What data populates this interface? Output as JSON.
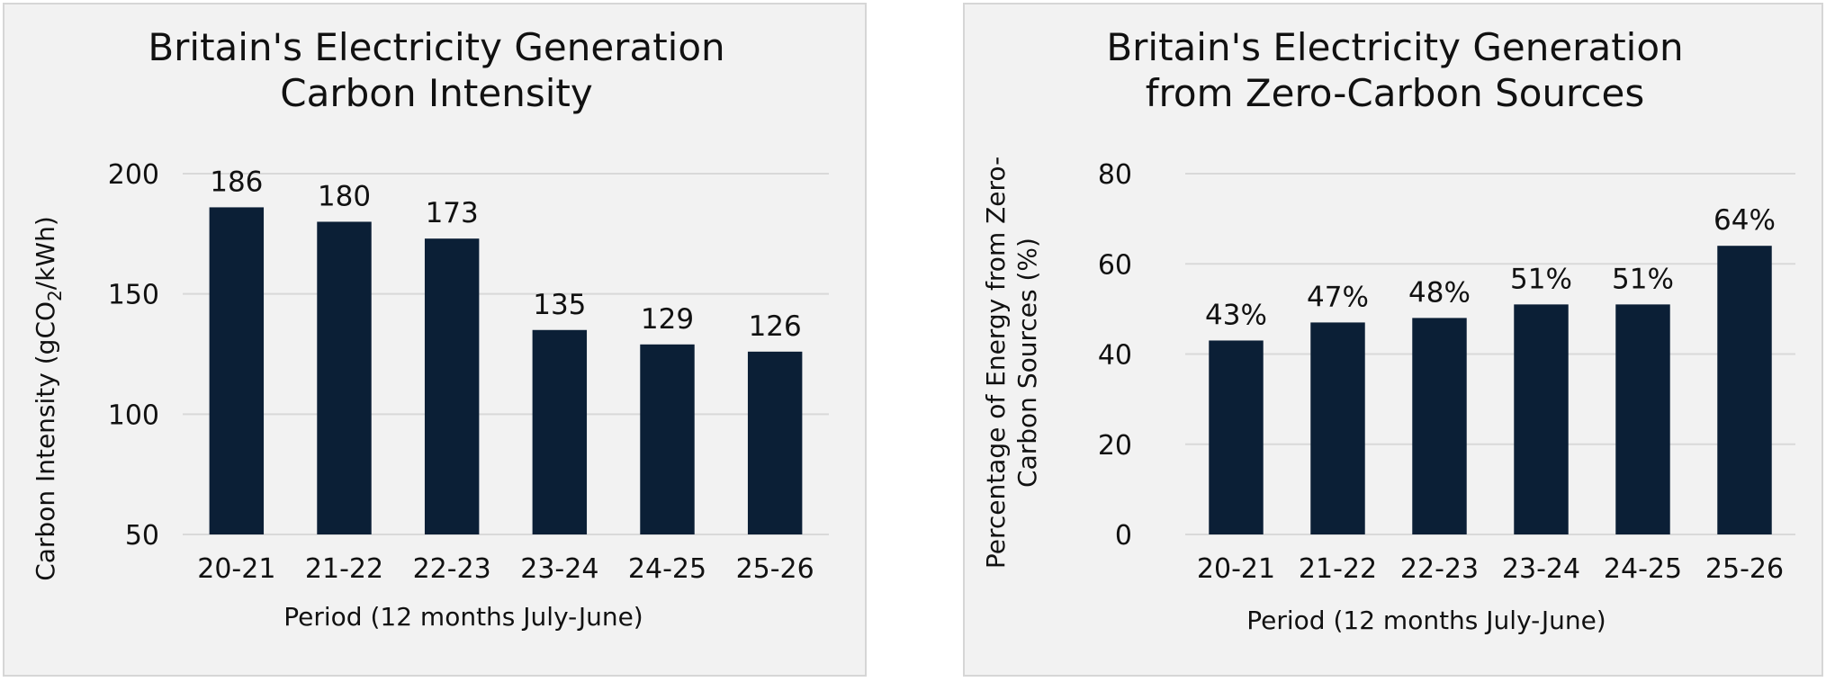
{
  "chart_data": [
    {
      "type": "bar",
      "title": [
        "Britain's Electricity Generation",
        "Carbon Intensity"
      ],
      "categories": [
        "20-21",
        "21-22",
        "22-23",
        "23-24",
        "24-25",
        "25-26"
      ],
      "values": [
        186,
        180,
        173,
        135,
        129,
        126
      ],
      "data_labels": [
        "186",
        "180",
        "173",
        "135",
        "129",
        "126"
      ],
      "yticks": [
        50,
        100,
        150,
        200
      ],
      "ylim": [
        50,
        200
      ],
      "xlabel": "Period (12 months July-June)",
      "ylabel": [
        "Carbon Intensity (gCO",
        "2",
        "/kWh)"
      ],
      "grid": true,
      "bar_color": "#0b1f36"
    },
    {
      "type": "bar",
      "title": [
        "Britain's Electricity Generation",
        "from Zero-Carbon Sources"
      ],
      "categories": [
        "20-21",
        "21-22",
        "22-23",
        "23-24",
        "24-25",
        "25-26"
      ],
      "values": [
        43,
        47,
        48,
        51,
        51,
        64
      ],
      "data_labels": [
        "43%",
        "47%",
        "48%",
        "51%",
        "51%",
        "64%"
      ],
      "yticks": [
        0,
        20,
        40,
        60,
        80
      ],
      "ylim": [
        0,
        80
      ],
      "xlabel": "Period (12 months July-June)",
      "ylabel": [
        "Percentage of Energy from Zero-",
        "Carbon Sources (%)"
      ],
      "grid": true,
      "bar_color": "#0b1f36"
    }
  ]
}
